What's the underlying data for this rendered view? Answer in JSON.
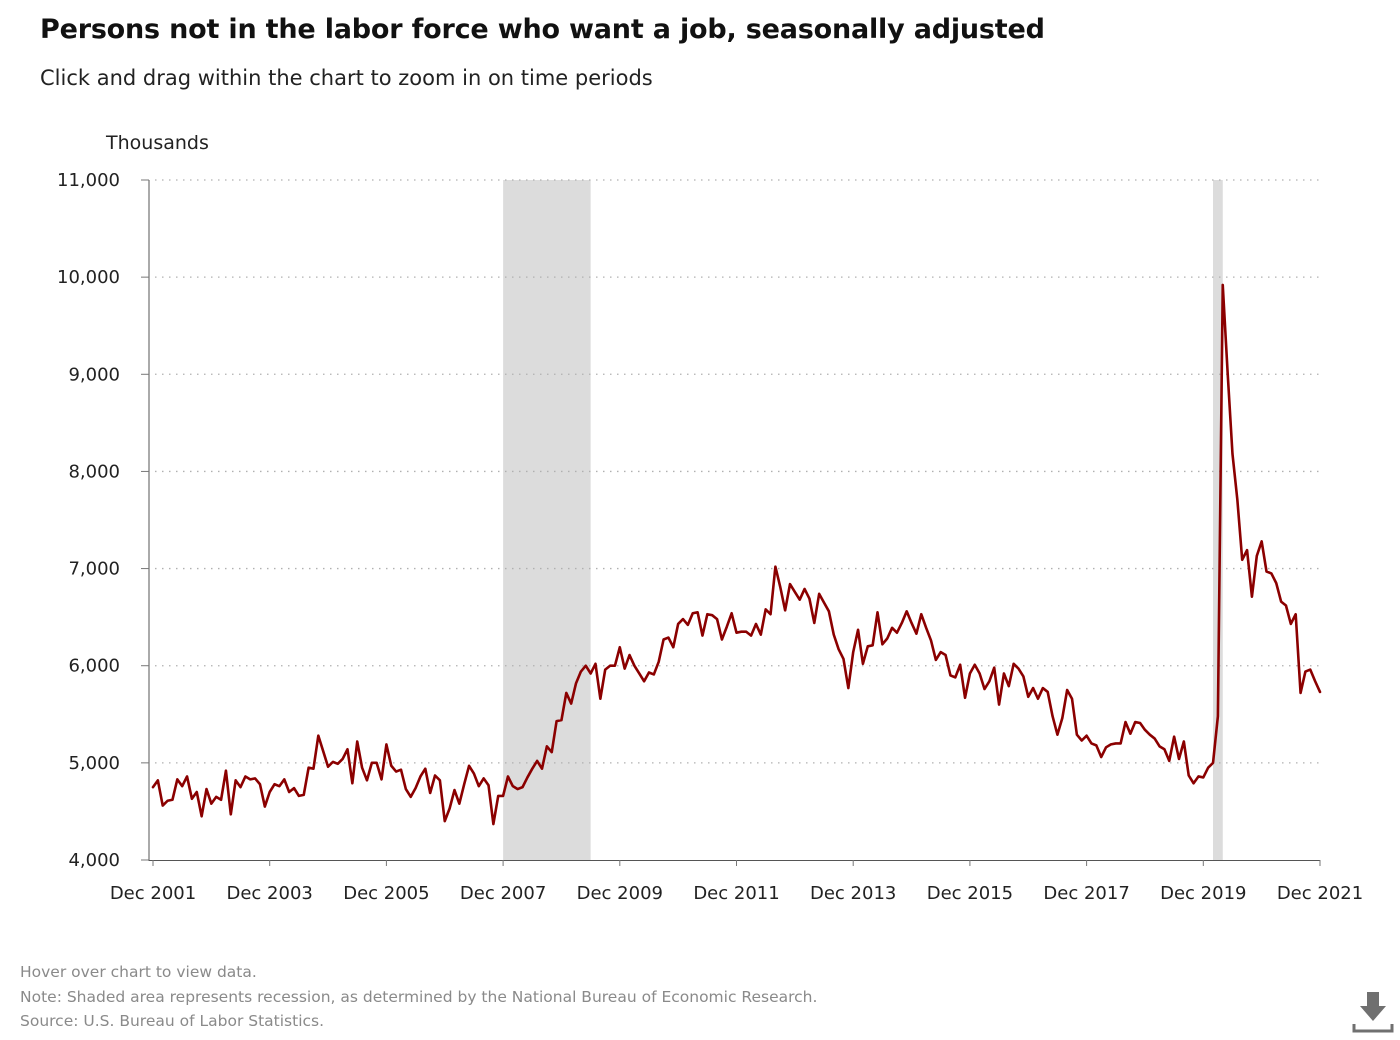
{
  "title": "Persons not in the labor force who want a job, seasonally adjusted",
  "subtitle": "Click and drag within the chart to zoom in on time periods",
  "footer": {
    "hover": "Hover over chart to view data.",
    "note": "Note: Shaded area represents recession, as determined by the National Bureau of Economic Research.",
    "source": "Source: U.S. Bureau of Labor Statistics."
  },
  "icons": {
    "download": "download-icon"
  },
  "colors": {
    "line": "#8b0000",
    "recession": "#dcdcdc",
    "grid": "#b0b0b0"
  },
  "chart_data": {
    "type": "line",
    "title": "Persons not in the labor force who want a job, seasonally adjusted",
    "ylabel": "Thousands",
    "xlabel": "",
    "ylim": [
      4000,
      11000
    ],
    "yticks": [
      "4,000",
      "5,000",
      "6,000",
      "7,000",
      "8,000",
      "9,000",
      "10,000",
      "11,000"
    ],
    "xticks": [
      "Dec 2001",
      "Dec 2003",
      "Dec 2005",
      "Dec 2007",
      "Dec 2009",
      "Dec 2011",
      "Dec 2013",
      "Dec 2015",
      "Dec 2017",
      "Dec 2019",
      "Dec 2021"
    ],
    "x_start": "Dec 2001",
    "x_end": "Dec 2021",
    "grid": "horizontal dotted",
    "recessions": [
      {
        "start": "Dec 2007",
        "end": "Jun 2009"
      },
      {
        "start": "Feb 2020",
        "end": "Apr 2020"
      }
    ],
    "series": [
      {
        "values": [
          4750,
          4820,
          4560,
          4610,
          4620,
          4830,
          4760,
          4860,
          4630,
          4700,
          4450,
          4730,
          4580,
          4650,
          4620,
          4920,
          4470,
          4820,
          4750,
          4860,
          4830,
          4840,
          4780,
          4550,
          4700,
          4780,
          4760,
          4830,
          4700,
          4740,
          4660,
          4670,
          4950,
          4940,
          5280,
          5120,
          4960,
          5010,
          4990,
          5040,
          5140,
          4790,
          5220,
          4950,
          4820,
          5000,
          5000,
          4830,
          5190,
          4970,
          4910,
          4930,
          4730,
          4650,
          4740,
          4860,
          4940,
          4690,
          4870,
          4820,
          4400,
          4530,
          4720,
          4580,
          4780,
          4970,
          4890,
          4760,
          4840,
          4770,
          4370,
          4660,
          4660,
          4860,
          4760,
          4730,
          4750,
          4850,
          4940,
          5020,
          4940,
          5170,
          5110,
          5430,
          5440,
          5720,
          5610,
          5820,
          5940,
          6000,
          5920,
          6020,
          5660,
          5960,
          6000,
          6000,
          6190,
          5970,
          6110,
          6000,
          5920,
          5840,
          5930,
          5910,
          6040,
          6270,
          6290,
          6190,
          6430,
          6480,
          6420,
          6540,
          6550,
          6310,
          6530,
          6520,
          6480,
          6270,
          6400,
          6540,
          6340,
          6350,
          6350,
          6310,
          6430,
          6320,
          6580,
          6530,
          7020,
          6810,
          6570,
          6840,
          6760,
          6680,
          6790,
          6690,
          6440,
          6740,
          6650,
          6560,
          6320,
          6170,
          6070,
          5770,
          6140,
          6370,
          6020,
          6200,
          6210,
          6550,
          6220,
          6280,
          6390,
          6340,
          6440,
          6560,
          6440,
          6330,
          6530,
          6390,
          6260,
          6060,
          6140,
          6110,
          5900,
          5880,
          6010,
          5670,
          5920,
          6010,
          5920,
          5760,
          5840,
          5980,
          5600,
          5920,
          5790,
          6020,
          5970,
          5890,
          5680,
          5770,
          5660,
          5770,
          5730,
          5480,
          5290,
          5460,
          5750,
          5660,
          5290,
          5230,
          5280,
          5200,
          5180,
          5060,
          5160,
          5190,
          5200,
          5200,
          5420,
          5300,
          5420,
          5410,
          5340,
          5290,
          5250,
          5170,
          5140,
          5020,
          5270,
          5040,
          5220,
          4870,
          4790,
          4860,
          4850,
          4950,
          5000,
          5480,
          9920,
          9020,
          8180,
          7710,
          7090,
          7190,
          6710,
          7130,
          7280,
          6970,
          6950,
          6850,
          6660,
          6620,
          6430,
          6530,
          5720,
          5940,
          5960,
          5840,
          5730
        ]
      }
    ]
  }
}
